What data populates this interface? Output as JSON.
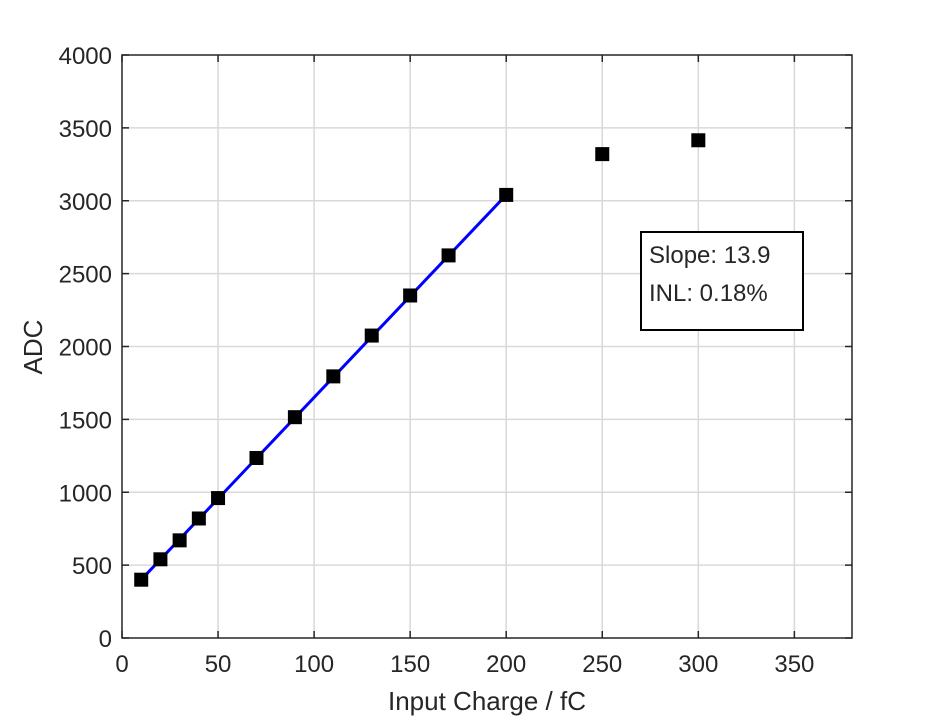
{
  "chart_data": {
    "type": "scatter",
    "xlabel": "Input Charge / fC",
    "ylabel": "ADC",
    "xlim": [
      0,
      380
    ],
    "ylim": [
      0,
      4000
    ],
    "xticks": [
      0,
      50,
      100,
      150,
      200,
      250,
      300,
      350
    ],
    "yticks": [
      0,
      500,
      1000,
      1500,
      2000,
      2500,
      3000,
      3500,
      4000
    ],
    "grid": true,
    "series": [
      {
        "type": "scatter",
        "marker": "square",
        "color": "#000000",
        "points": [
          {
            "x": 10,
            "y": 400
          },
          {
            "x": 20,
            "y": 540
          },
          {
            "x": 30,
            "y": 670
          },
          {
            "x": 40,
            "y": 820
          },
          {
            "x": 50,
            "y": 960
          },
          {
            "x": 70,
            "y": 1235
          },
          {
            "x": 90,
            "y": 1515
          },
          {
            "x": 110,
            "y": 1795
          },
          {
            "x": 130,
            "y": 2075
          },
          {
            "x": 150,
            "y": 2350
          },
          {
            "x": 170,
            "y": 2625
          },
          {
            "x": 200,
            "y": 3040
          },
          {
            "x": 250,
            "y": 3320
          },
          {
            "x": 300,
            "y": 3415
          }
        ]
      },
      {
        "type": "line",
        "color": "#0000ff",
        "points": [
          {
            "x": 10,
            "y": 400
          },
          {
            "x": 200,
            "y": 3040
          }
        ]
      }
    ],
    "annotation": {
      "lines": [
        "Slope: 13.9",
        "INL: 0.18%"
      ]
    }
  }
}
